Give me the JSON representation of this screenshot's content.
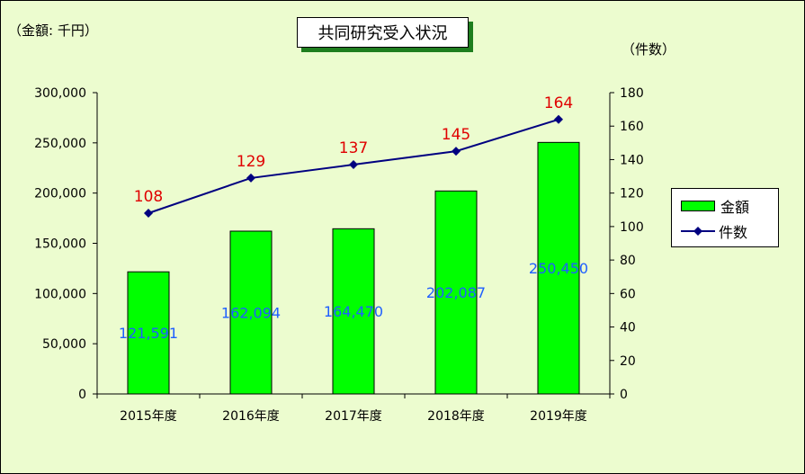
{
  "chart_data": {
    "type": "bar",
    "title": "共同研究受入状況",
    "left_axis_unit": "（金額: 千円）",
    "right_axis_unit": "（件数）",
    "categories": [
      "2015年度",
      "2016年度",
      "2017年度",
      "2018年度",
      "2019年度"
    ],
    "series": [
      {
        "name": "金額",
        "type": "bar",
        "axis": "left",
        "color": "#00ff00",
        "label_color": "#1f5fff",
        "values": [
          121591,
          162094,
          164470,
          202087,
          250450
        ],
        "labels": [
          "121,591",
          "162,094",
          "164,470",
          "202,087",
          "250,450"
        ]
      },
      {
        "name": "件数",
        "type": "line",
        "axis": "right",
        "color": "#000080",
        "label_color": "#e00000",
        "values": [
          108,
          129,
          137,
          145,
          164
        ],
        "labels": [
          "108",
          "129",
          "137",
          "145",
          "164"
        ]
      }
    ],
    "left_axis": {
      "ylim": [
        0,
        300000
      ],
      "ticks": [
        0,
        50000,
        100000,
        150000,
        200000,
        250000,
        300000
      ],
      "tick_labels": [
        "0",
        "50,000",
        "100,000",
        "150,000",
        "200,000",
        "250,000",
        "300,000"
      ]
    },
    "right_axis": {
      "ylim": [
        0,
        180
      ],
      "ticks": [
        0,
        20,
        40,
        60,
        80,
        100,
        120,
        140,
        160,
        180
      ],
      "tick_labels": [
        "0",
        "20",
        "40",
        "60",
        "80",
        "100",
        "120",
        "140",
        "160",
        "180"
      ]
    },
    "grid": false,
    "legend_position": "right",
    "background_color": "#ecfccf"
  }
}
